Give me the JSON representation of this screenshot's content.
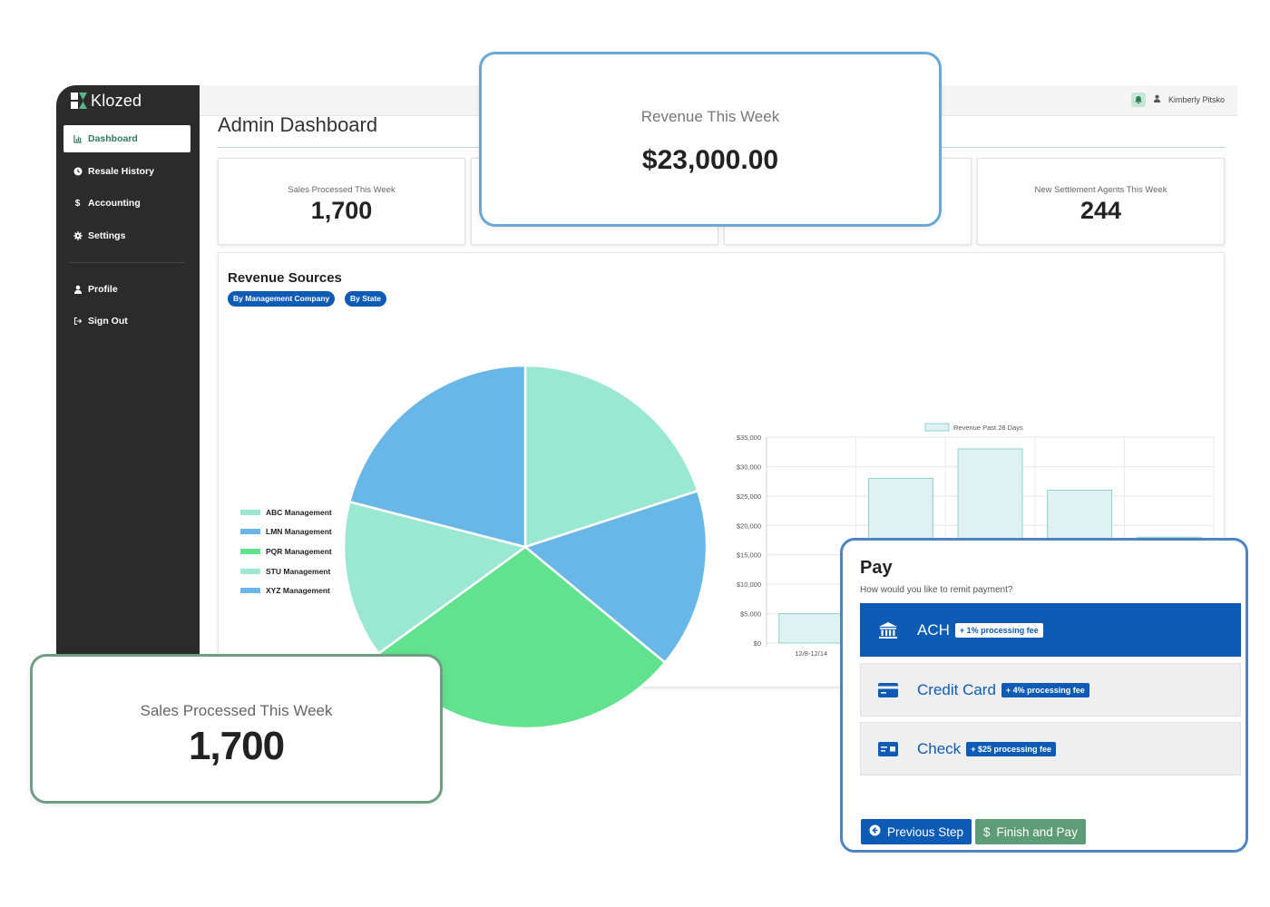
{
  "app": {
    "logo_text": "Klozed",
    "user_name": "Kimberly Pitsko",
    "page_title": "Admin Dashboard"
  },
  "sidebar": {
    "items": [
      {
        "label": "Dashboard",
        "icon": "chart-icon",
        "active": true
      },
      {
        "label": "Resale History",
        "icon": "clock-icon"
      },
      {
        "label": "Accounting",
        "icon": "dollar-icon"
      },
      {
        "label": "Settings",
        "icon": "gear-icon"
      }
    ],
    "secondary": [
      {
        "label": "Profile",
        "icon": "user-icon"
      },
      {
        "label": "Sign Out",
        "icon": "sign-out-icon"
      }
    ]
  },
  "stats": {
    "sales": {
      "label": "Sales Processed This Week",
      "value": "1,700"
    },
    "agents": {
      "label": "New Settlement Agents This Week",
      "value": "244"
    }
  },
  "revenue": {
    "title": "Revenue Sources",
    "tabs": [
      "By Management Company",
      "By State"
    ],
    "legend": [
      {
        "label": "ABC Management",
        "color": "#9be8d2"
      },
      {
        "label": "LMN Management",
        "color": "#68b7e6"
      },
      {
        "label": "PQR Management",
        "color": "#62e28f"
      },
      {
        "label": "STU Management",
        "color": "#9be8d2"
      },
      {
        "label": "XYZ Management",
        "color": "#68b7e6"
      }
    ]
  },
  "overlays": {
    "revenue_week": {
      "label": "Revenue This Week",
      "value": "$23,000.00"
    },
    "sales_week": {
      "label": "Sales Processed This Week",
      "value": "1,700"
    }
  },
  "pay": {
    "title": "Pay",
    "subtitle": "How would you like to remit payment?",
    "options": [
      {
        "name": "ACH",
        "fee": "+ 1% processing fee",
        "icon": "bank-icon",
        "selected": true
      },
      {
        "name": "Credit Card",
        "fee": "+ 4% processing fee",
        "icon": "credit-card-icon"
      },
      {
        "name": "Check",
        "fee": "+ $25 processing fee",
        "icon": "check-icon"
      }
    ],
    "prev_label": "Previous Step",
    "finish_label": "Finish and Pay"
  },
  "chart_data": [
    {
      "type": "pie",
      "labels": [
        "ABC Management",
        "LMN Management",
        "PQR Management",
        "STU Management",
        "XYZ Management"
      ],
      "values": [
        20,
        16,
        29,
        14,
        21
      ],
      "colors": [
        "#9be8d2",
        "#68b7e6",
        "#62e28f",
        "#9be8d2",
        "#68b7e6"
      ],
      "legend": "left"
    },
    {
      "type": "bar",
      "series": [
        {
          "name": "Revenue Past 28 Days",
          "values": [
            5000,
            28000,
            33000,
            26000,
            18000
          ]
        }
      ],
      "categories": [
        "12/8-12/14",
        "",
        "",
        "",
        ""
      ],
      "y_ticks": [
        "$0",
        "$5,000",
        "$10,000",
        "$15,000",
        "$20,000",
        "$25,000",
        "$30,000",
        "$35,000"
      ],
      "ylim": [
        0,
        35000
      ],
      "grid": true,
      "legend": "top"
    }
  ]
}
